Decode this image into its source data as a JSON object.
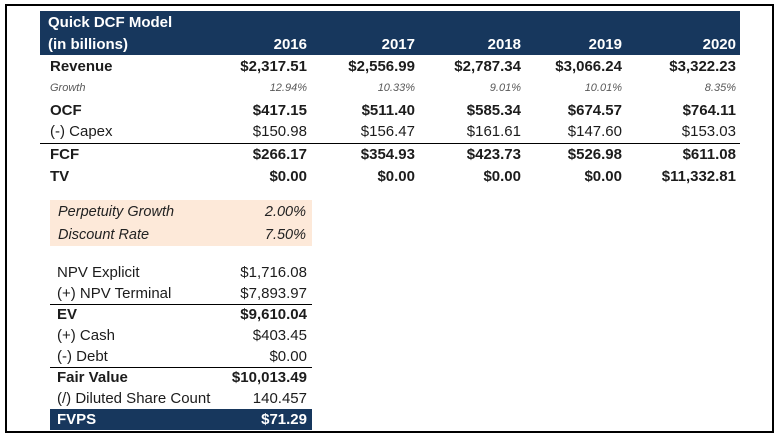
{
  "colors": {
    "navy": "#17375D",
    "peach": "#FDE9D9",
    "growth_text": "#595959"
  },
  "dcf_table": {
    "title": "Quick DCF Model",
    "subtitle": "(in billions)",
    "years": [
      "2016",
      "2017",
      "2018",
      "2019",
      "2020"
    ],
    "rows": [
      {
        "label": "Revenue",
        "style": "bold",
        "values": [
          "$2,317.51",
          "$2,556.99",
          "$2,787.34",
          "$3,066.24",
          "$3,322.23"
        ]
      },
      {
        "label": "Growth",
        "style": "growth",
        "values": [
          "12.94%",
          "10.33%",
          "9.01%",
          "10.01%",
          "8.35%"
        ]
      },
      {
        "label": "OCF",
        "style": "bold",
        "values": [
          "$417.15",
          "$511.40",
          "$585.34",
          "$674.57",
          "$764.11"
        ]
      },
      {
        "label": "(-) Capex",
        "style": "regular underline",
        "values": [
          "$150.98",
          "$156.47",
          "$161.61",
          "$147.60",
          "$153.03"
        ]
      },
      {
        "label": "FCF",
        "style": "bold",
        "values": [
          "$266.17",
          "$354.93",
          "$423.73",
          "$526.98",
          "$611.08"
        ]
      },
      {
        "label": "TV",
        "style": "bold",
        "values": [
          "$0.00",
          "$0.00",
          "$0.00",
          "$0.00",
          "$11,332.81"
        ]
      }
    ]
  },
  "assumptions": {
    "rows": [
      {
        "label": "Perpetuity Growth",
        "value": "2.00%"
      },
      {
        "label": "Discount Rate",
        "value": "7.50%"
      }
    ]
  },
  "valuation": {
    "rows": [
      {
        "label": "NPV Explicit",
        "value": "$1,716.08",
        "style": "regular"
      },
      {
        "label": "(+) NPV Terminal",
        "value": "$7,893.97",
        "style": "regular underline"
      },
      {
        "label": "EV",
        "value": "$9,610.04",
        "style": "bold"
      },
      {
        "label": "(+) Cash",
        "value": "$403.45",
        "style": "regular"
      },
      {
        "label": "(-) Debt",
        "value": "$0.00",
        "style": "regular underline"
      },
      {
        "label": "Fair Value",
        "value": "$10,013.49",
        "style": "bold"
      },
      {
        "label": "(/) Diluted Share Count",
        "value": "140.457",
        "style": "regular"
      },
      {
        "label": "FVPS",
        "value": "$71.29",
        "style": "highlight"
      }
    ]
  }
}
